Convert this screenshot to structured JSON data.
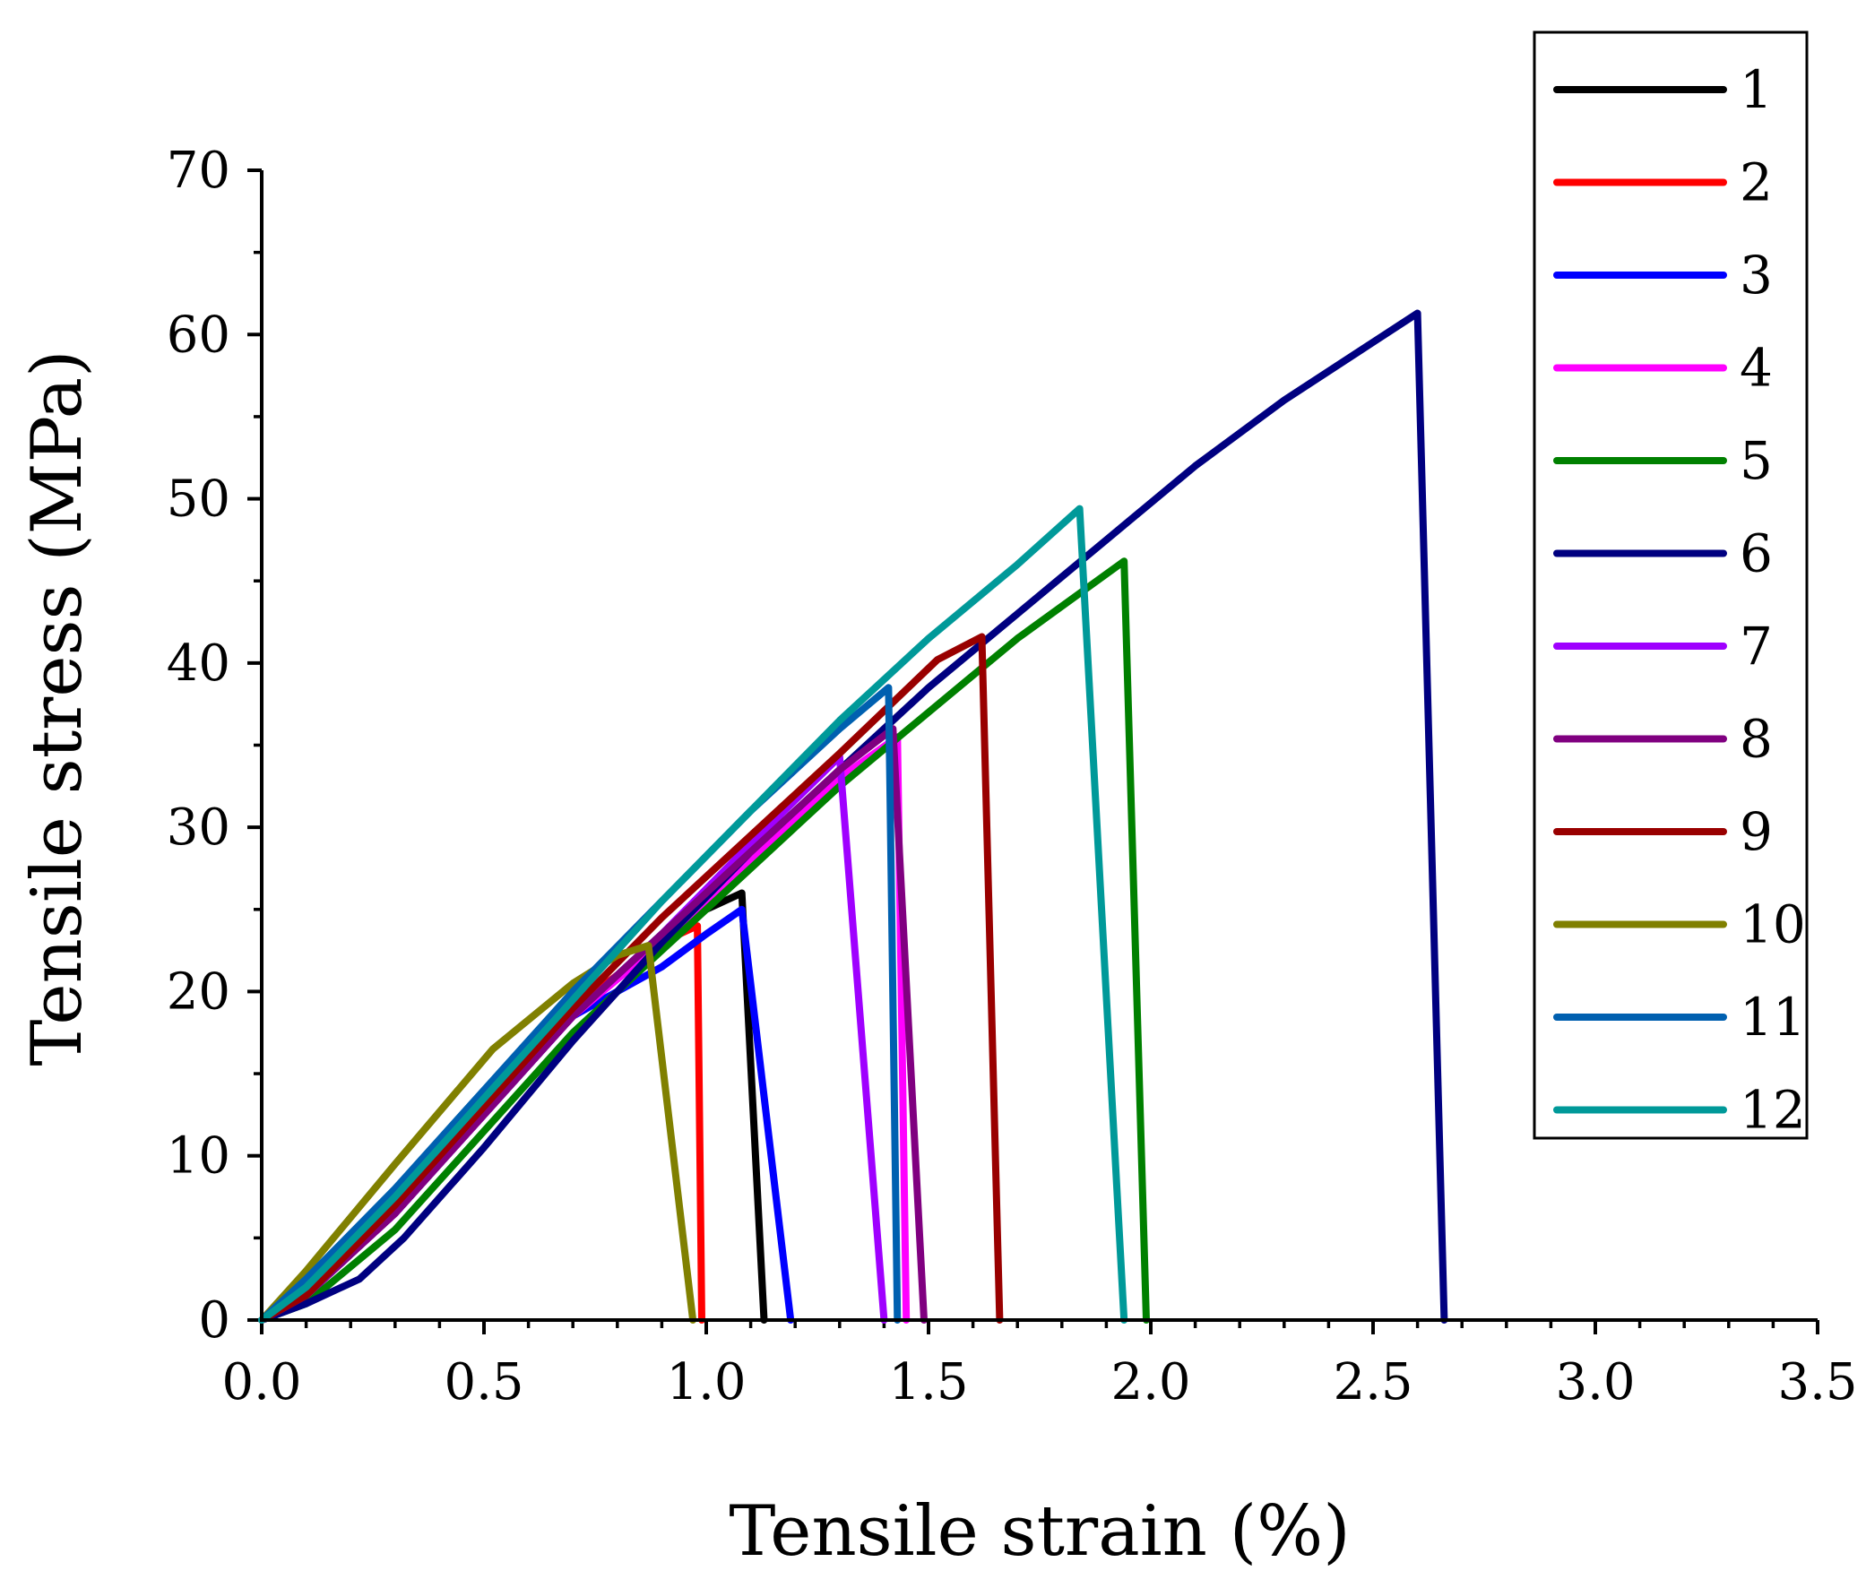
{
  "chart_data": {
    "type": "line",
    "title": "",
    "xlabel": "Tensile strain (%)",
    "ylabel": "Tensile stress (MPa)",
    "xlim": [
      0,
      3.5
    ],
    "ylim": [
      0,
      70
    ],
    "xticks": [
      "0.0",
      "0.5",
      "1.0",
      "1.5",
      "2.0",
      "2.5",
      "3.0",
      "3.5"
    ],
    "yticks": [
      "0",
      "10",
      "20",
      "30",
      "40",
      "50",
      "60",
      "70"
    ],
    "legend_position": "top-right",
    "series": [
      {
        "name": "1",
        "color": "#000000",
        "x": [
          0,
          0.1,
          0.3,
          0.5,
          0.7,
          0.9,
          1.0,
          1.08,
          1.13
        ],
        "y": [
          0,
          1.5,
          6.5,
          12.5,
          18.5,
          23.5,
          25,
          26,
          0
        ]
      },
      {
        "name": "2",
        "color": "#ff0000",
        "x": [
          0,
          0.1,
          0.3,
          0.5,
          0.7,
          0.9,
          0.98,
          0.99
        ],
        "y": [
          0,
          1.5,
          6.5,
          13,
          19,
          23,
          24,
          0
        ]
      },
      {
        "name": "3",
        "color": "#0000ff",
        "x": [
          0,
          0.1,
          0.3,
          0.5,
          0.7,
          0.9,
          1.0,
          1.08,
          1.19
        ],
        "y": [
          0,
          1.5,
          6.5,
          12.5,
          18.5,
          21.5,
          23.5,
          25,
          0
        ]
      },
      {
        "name": "4",
        "color": "#ff00ff",
        "x": [
          0,
          0.1,
          0.3,
          0.5,
          0.7,
          0.9,
          1.1,
          1.3,
          1.43,
          1.45
        ],
        "y": [
          0,
          1.5,
          6.5,
          12.5,
          18.5,
          23,
          28,
          33,
          35.5,
          0
        ]
      },
      {
        "name": "5",
        "color": "#008000",
        "x": [
          0,
          0.1,
          0.3,
          0.5,
          0.7,
          0.9,
          1.1,
          1.3,
          1.5,
          1.7,
          1.94,
          1.99
        ],
        "y": [
          0,
          1,
          5.5,
          11.5,
          17.5,
          22.5,
          27.5,
          32.5,
          37,
          41.5,
          46.2,
          0
        ]
      },
      {
        "name": "6",
        "color": "#000080",
        "x": [
          0,
          0.1,
          0.22,
          0.32,
          0.5,
          0.7,
          0.9,
          1.1,
          1.3,
          1.5,
          1.7,
          1.9,
          2.1,
          2.3,
          2.6,
          2.66
        ],
        "y": [
          0,
          1,
          2.5,
          5,
          10.5,
          17,
          23,
          28.5,
          33.5,
          38.5,
          43,
          47.5,
          52,
          56,
          61.3,
          0
        ]
      },
      {
        "name": "7",
        "color": "#9f00ff",
        "x": [
          0,
          0.1,
          0.3,
          0.5,
          0.7,
          0.9,
          1.1,
          1.3,
          1.4
        ],
        "y": [
          0,
          1.5,
          6.5,
          12.5,
          18.5,
          23.5,
          29,
          34.3,
          0
        ]
      },
      {
        "name": "8",
        "color": "#800080",
        "x": [
          0,
          0.1,
          0.3,
          0.5,
          0.7,
          0.9,
          1.1,
          1.3,
          1.42,
          1.49
        ],
        "y": [
          0,
          1.5,
          6.5,
          12.5,
          18.5,
          23.5,
          28.5,
          33.5,
          36,
          0
        ]
      },
      {
        "name": "9",
        "color": "#990000",
        "x": [
          0,
          0.1,
          0.3,
          0.5,
          0.7,
          0.9,
          1.1,
          1.3,
          1.52,
          1.62,
          1.66
        ],
        "y": [
          0,
          1.5,
          7,
          13,
          19,
          24.5,
          29.5,
          34.5,
          40.2,
          41.6,
          0
        ]
      },
      {
        "name": "10",
        "color": "#808000",
        "x": [
          0,
          0.1,
          0.3,
          0.52,
          0.7,
          0.8,
          0.87,
          0.97
        ],
        "y": [
          0,
          3,
          9.5,
          16.5,
          20.5,
          22.2,
          22.8,
          0
        ]
      },
      {
        "name": "11",
        "color": "#0060b0",
        "x": [
          0,
          0.1,
          0.3,
          0.5,
          0.7,
          0.9,
          1.1,
          1.3,
          1.41,
          1.43
        ],
        "y": [
          0,
          2.5,
          8,
          14,
          20,
          25.5,
          31,
          36,
          38.5,
          0
        ]
      },
      {
        "name": "12",
        "color": "#009999",
        "x": [
          0,
          0.1,
          0.3,
          0.5,
          0.7,
          0.9,
          1.1,
          1.3,
          1.5,
          1.7,
          1.84,
          1.94
        ],
        "y": [
          0,
          2,
          7.5,
          13.5,
          19.5,
          25.5,
          31,
          36.5,
          41.5,
          46,
          49.4,
          0
        ]
      }
    ]
  }
}
